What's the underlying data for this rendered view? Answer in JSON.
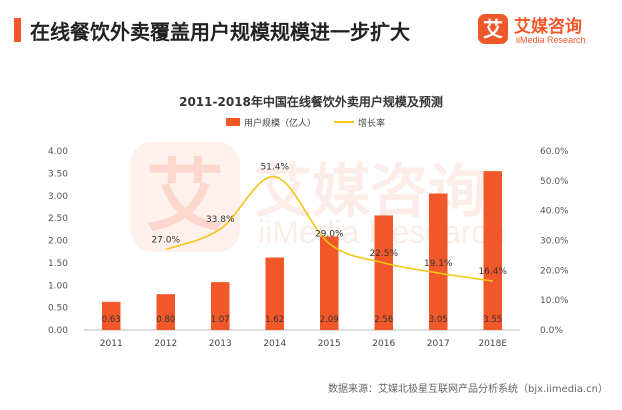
{
  "header": {
    "title": "在线餐饮外卖覆盖用户规模规模进一步扩大",
    "logo_mark": "艾",
    "logo_name": "艾媒咨询",
    "logo_sub": "iiMedia Research"
  },
  "watermark": {
    "mark": "艾",
    "name": "艾媒咨询",
    "sub": "iiMedia Research"
  },
  "source": "数据来源：艾媒北极星互联网产品分析系统（bjx.iimedia.cn）",
  "colors": {
    "bar": "#f0582a",
    "line": "#f5c518",
    "brand": "#f0582a"
  },
  "chart_data": {
    "type": "bar",
    "title": "2011-2018年中国在线餐饮外卖用户规模及预测",
    "categories": [
      "2011",
      "2012",
      "2013",
      "2014",
      "2015",
      "2016",
      "2017",
      "2018E"
    ],
    "series": [
      {
        "name": "用户规模（亿人）",
        "type": "bar",
        "axis": "left",
        "values": [
          0.63,
          0.8,
          1.07,
          1.62,
          2.09,
          2.56,
          3.05,
          3.55
        ],
        "labels": [
          "0.63",
          "0.80",
          "1.07",
          "1.62",
          "2.09",
          "2.56",
          "3.05",
          "3.55"
        ]
      },
      {
        "name": "增长率",
        "type": "line",
        "axis": "right",
        "values": [
          null,
          27.0,
          33.8,
          51.4,
          29.0,
          22.5,
          19.1,
          16.4
        ],
        "labels": [
          "",
          "27.0%",
          "33.8%",
          "51.4%",
          "29.0%",
          "22.5%",
          "19.1%",
          "16.4%"
        ]
      }
    ],
    "ylim": [
      0,
      4.0
    ],
    "y_ticks": [
      "0.00",
      "0.50",
      "1.00",
      "1.50",
      "2.00",
      "2.50",
      "3.00",
      "3.50",
      "4.00"
    ],
    "y2lim": [
      0,
      60
    ],
    "y2_ticks": [
      "0.0%",
      "10.0%",
      "20.0%",
      "30.0%",
      "40.0%",
      "50.0%",
      "60.0%"
    ],
    "legend_position": "top-center",
    "grid": false
  }
}
